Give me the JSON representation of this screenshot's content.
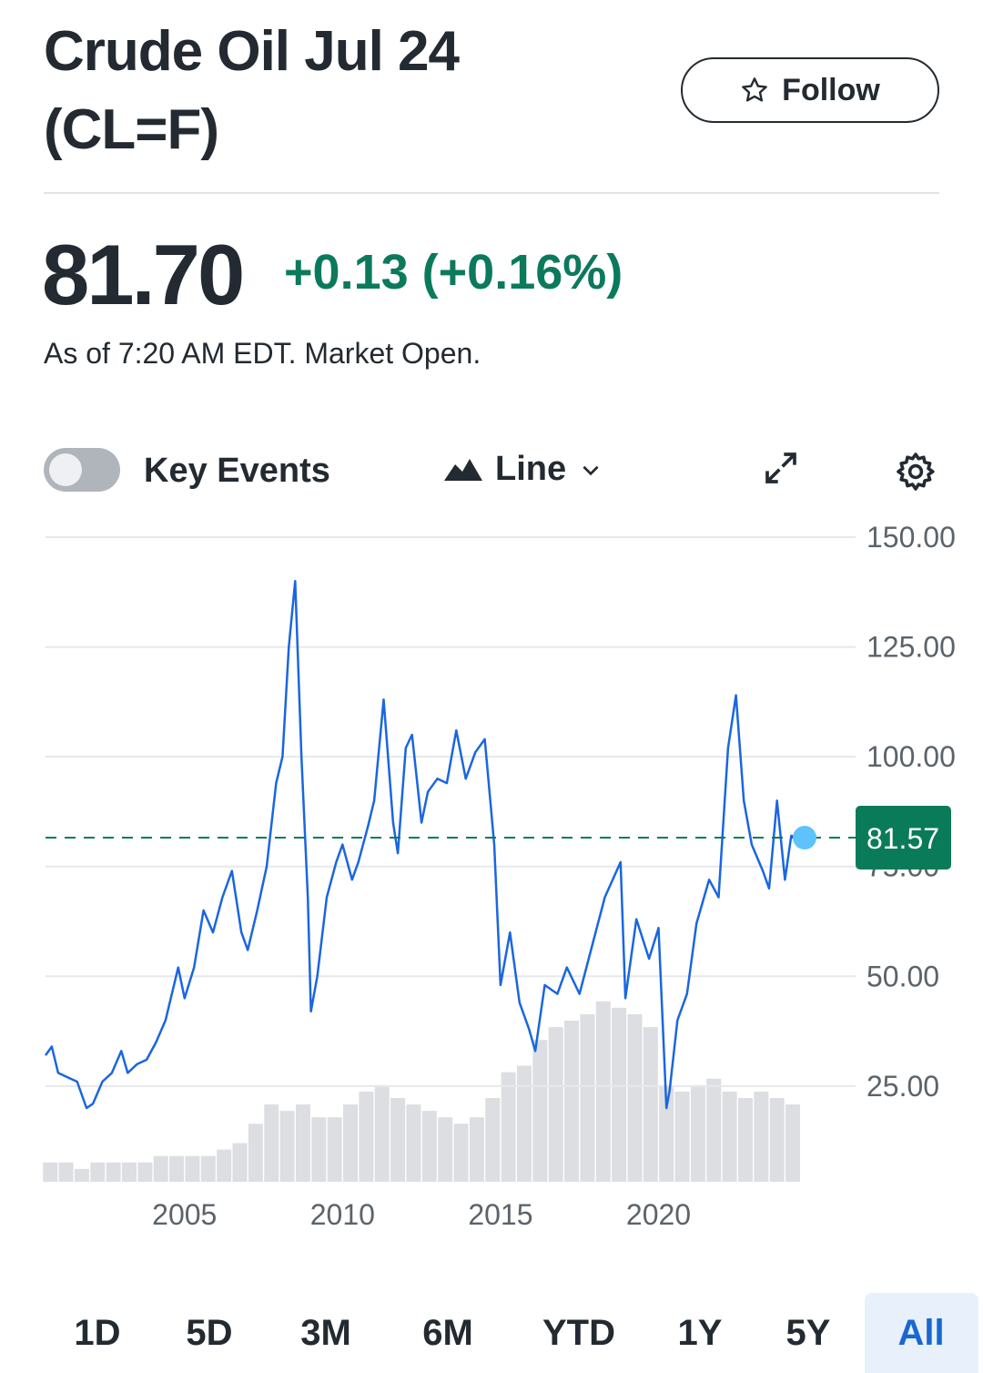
{
  "header": {
    "title": "Crude Oil Jul 24 (CL=F)",
    "follow": "Follow",
    "price": "81.70",
    "change": "+0.13 (+0.16%)",
    "as_of": "As of 7:20 AM EDT. Market Open."
  },
  "controls": {
    "key_events": "Key Events",
    "chart_style": "Line"
  },
  "chart_data": {
    "type": "line",
    "xlim": [
      2000.6,
      2024.45
    ],
    "xticks": [
      2005,
      2010,
      2015,
      2020
    ],
    "ylim": [
      3.2,
      150
    ],
    "yticks": [
      {
        "value": 25,
        "label": "25.00"
      },
      {
        "value": 50,
        "label": "50.00"
      },
      {
        "value": 75,
        "label": "75.00"
      },
      {
        "value": 100,
        "label": "100.00"
      },
      {
        "value": 125,
        "label": "125.00"
      },
      {
        "value": 150,
        "label": "150.00"
      }
    ],
    "grid": true,
    "price": {
      "color": "#1a66e0",
      "x": [
        2000.6,
        2000.8,
        2001.0,
        2001.3,
        2001.6,
        2001.9,
        2002.1,
        2002.4,
        2002.7,
        2003.0,
        2003.2,
        2003.5,
        2003.8,
        2004.1,
        2004.4,
        2004.8,
        2005.0,
        2005.3,
        2005.6,
        2005.9,
        2006.2,
        2006.5,
        2006.8,
        2007.0,
        2007.3,
        2007.6,
        2007.9,
        2008.1,
        2008.3,
        2008.5,
        2008.7,
        2008.9,
        2009.0,
        2009.2,
        2009.5,
        2009.8,
        2010.0,
        2010.3,
        2010.5,
        2010.8,
        2011.0,
        2011.3,
        2011.6,
        2011.75,
        2012.0,
        2012.2,
        2012.5,
        2012.7,
        2013.0,
        2013.3,
        2013.6,
        2013.9,
        2014.2,
        2014.5,
        2014.8,
        2015.0,
        2015.3,
        2015.6,
        2015.9,
        2016.1,
        2016.4,
        2016.8,
        2017.1,
        2017.5,
        2017.9,
        2018.3,
        2018.8,
        2018.95,
        2019.3,
        2019.7,
        2020.0,
        2020.25,
        2020.35,
        2020.6,
        2020.9,
        2021.2,
        2021.6,
        2021.9,
        2022.2,
        2022.45,
        2022.7,
        2022.95,
        2023.3,
        2023.5,
        2023.75,
        2024.0,
        2024.2,
        2024.45
      ],
      "values": [
        32,
        34,
        28,
        27,
        26,
        20,
        21,
        26,
        28,
        33,
        28,
        30,
        31,
        35,
        40,
        52,
        45,
        52,
        65,
        60,
        68,
        74,
        60,
        56,
        65,
        75,
        94,
        100,
        125,
        140,
        100,
        68,
        42,
        50,
        68,
        76,
        80,
        72,
        76,
        84,
        90,
        113,
        85,
        78,
        102,
        105,
        85,
        92,
        95,
        94,
        106,
        95,
        101,
        104,
        80,
        48,
        60,
        44,
        38,
        33,
        48,
        46,
        52,
        46,
        57,
        68,
        76,
        45,
        63,
        54,
        61,
        20,
        24,
        40,
        46,
        62,
        72,
        68,
        102,
        114,
        90,
        80,
        74,
        70,
        90,
        72,
        82,
        81.57
      ]
    },
    "volume": {
      "color": "#dcdee2",
      "y2lim": [
        0,
        100
      ],
      "x": [
        2000.75,
        2001.25,
        2001.75,
        2002.25,
        2002.75,
        2003.25,
        2003.75,
        2004.25,
        2004.75,
        2005.25,
        2005.75,
        2006.25,
        2006.75,
        2007.25,
        2007.75,
        2008.25,
        2008.75,
        2009.25,
        2009.75,
        2010.25,
        2010.75,
        2011.25,
        2011.75,
        2012.25,
        2012.75,
        2013.25,
        2013.75,
        2014.25,
        2014.75,
        2015.25,
        2015.75,
        2016.25,
        2016.75,
        2017.25,
        2017.75,
        2018.25,
        2018.75,
        2019.25,
        2019.75,
        2020.25,
        2020.75,
        2021.25,
        2021.75,
        2022.25,
        2022.75,
        2023.25,
        2023.75,
        2024.25
      ],
      "values": [
        3,
        3,
        2,
        3,
        3,
        3,
        3,
        4,
        4,
        4,
        4,
        5,
        6,
        9,
        12,
        11,
        12,
        10,
        10,
        12,
        14,
        15,
        13,
        12,
        11,
        10,
        9,
        10,
        13,
        17,
        18,
        22,
        24,
        25,
        26,
        28,
        27,
        26,
        24,
        15,
        14,
        15,
        16,
        14,
        13,
        14,
        13,
        12
      ]
    },
    "current_price": 81.57,
    "current_color": "#0a7b58",
    "marker_color": "#5ec2fb"
  },
  "ranges": {
    "labels": [
      "1D",
      "5D",
      "3M",
      "6M",
      "YTD",
      "1Y",
      "5Y",
      "All"
    ],
    "selected": 7
  }
}
